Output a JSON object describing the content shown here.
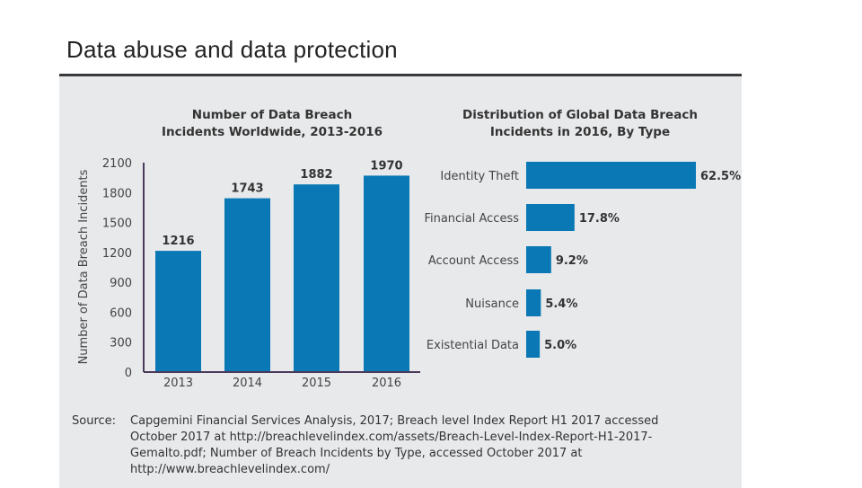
{
  "slide": {
    "title": "Data abuse and data protection"
  },
  "colors": {
    "bar": "#0a78b5",
    "axis": "#4a3a5a",
    "panel": "#e8e9eb"
  },
  "chart_data": [
    {
      "type": "bar",
      "title_lines": [
        "Number of Data Breach",
        "Incidents Worldwide, 2013-2016"
      ],
      "categories": [
        "2013",
        "2014",
        "2015",
        "2016"
      ],
      "values": [
        1216,
        1743,
        1882,
        1970
      ],
      "ylabel": "Number of Data Breach Incidents",
      "xlabel": "",
      "ylim": [
        0,
        2100
      ],
      "yticks": [
        0,
        300,
        600,
        900,
        1200,
        1500,
        1800,
        2100
      ],
      "grid": false,
      "data_labels": true
    },
    {
      "type": "bar",
      "orientation": "horizontal",
      "title_lines": [
        "Distribution of Global Data Breach",
        "Incidents in 2016, By Type"
      ],
      "categories": [
        "Identity Theft",
        "Financial Access",
        "Account Access",
        "Nuisance",
        "Existential Data"
      ],
      "values": [
        62.5,
        17.8,
        9.2,
        5.4,
        5.0
      ],
      "value_labels": [
        "62.5%",
        "17.8%",
        "9.2%",
        "5.4%",
        "5.0%"
      ],
      "unit": "%",
      "grid": false
    }
  ],
  "source": {
    "label": "Source:",
    "lines": [
      "Capgemini Financial Services Analysis, 2017; Breach level Index Report H1 2017 accessed",
      "October 2017 at http://breachlevelindex.com/assets/Breach-Level-Index-Report-H1-2017-",
      "Gemalto.pdf; Number of Breach Incidents by Type, accessed October 2017 at",
      "http://www.breachlevelindex.com/"
    ]
  }
}
